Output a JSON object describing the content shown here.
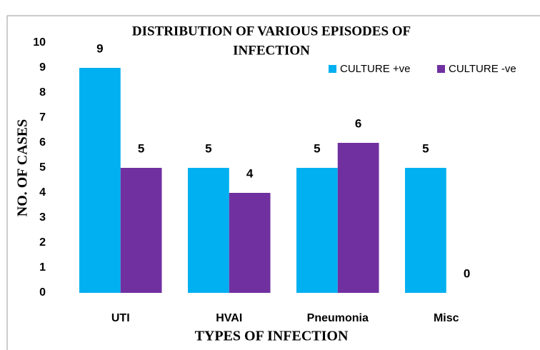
{
  "chart_data": {
    "type": "bar",
    "title": [
      "DISTRIBUTION OF VARIOUS EPISODES OF",
      "INFECTION"
    ],
    "x_label": "TYPES OF INFECTION",
    "y_label": "NO. OF CASES",
    "categories": [
      "UTI",
      "HVAI",
      "Pneumonia",
      "Misc"
    ],
    "series": [
      {
        "name": "CULTURE +ve",
        "color": "#00b0f0",
        "values": [
          9,
          5,
          5,
          5
        ]
      },
      {
        "name": "CULTURE -ve",
        "color": "#7030a0",
        "values": [
          5,
          4,
          6,
          0
        ]
      }
    ],
    "ylim": [
      0,
      10
    ],
    "yticks": [
      0,
      1,
      2,
      3,
      4,
      5,
      6,
      7,
      8,
      9,
      10
    ],
    "grid": false,
    "legend": "top-right"
  }
}
